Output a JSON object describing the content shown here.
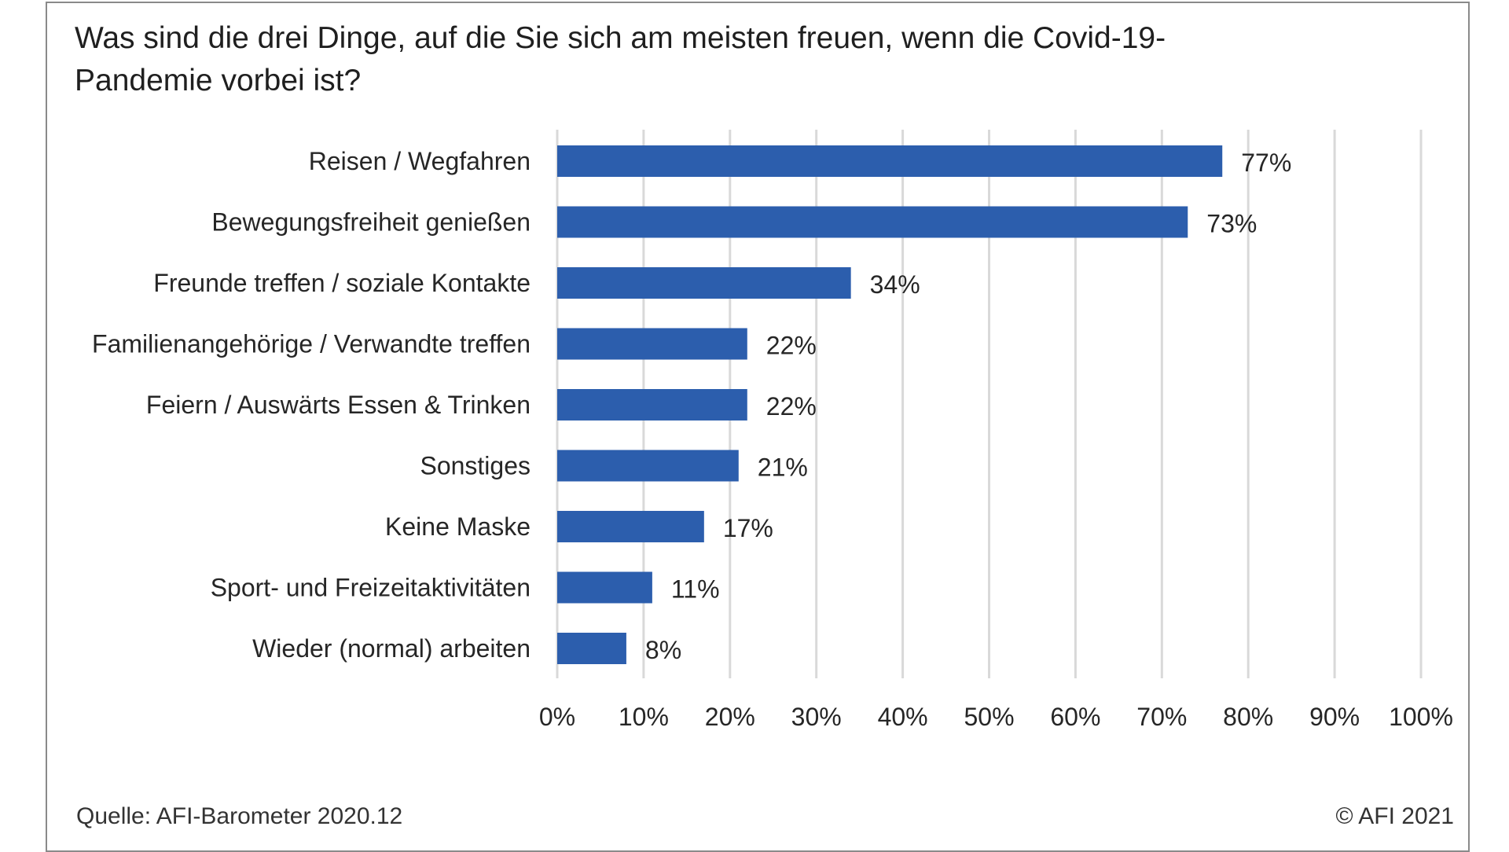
{
  "chart_data": {
    "type": "bar",
    "orientation": "horizontal",
    "title": "Was sind die drei Dinge, auf die Sie sich am meisten freuen, wenn die Covid-19-Pandemie vorbei ist?",
    "categories": [
      "Reisen / Wegfahren",
      "Bewegungsfreiheit genießen",
      "Freunde treffen / soziale Kontakte",
      "Familienangehörige / Verwandte treffen",
      "Feiern / Auswärts Essen & Trinken",
      "Sonstiges",
      "Keine Maske",
      "Sport- und Freizeitaktivitäten",
      "Wieder (normal) arbeiten"
    ],
    "values": [
      77,
      73,
      34,
      22,
      22,
      21,
      17,
      11,
      8
    ],
    "value_labels": [
      "77%",
      "73%",
      "34%",
      "22%",
      "22%",
      "21%",
      "17%",
      "11%",
      "8%"
    ],
    "xlim": [
      0,
      100
    ],
    "x_ticks": [
      "0%",
      "10%",
      "20%",
      "30%",
      "40%",
      "50%",
      "60%",
      "70%",
      "80%",
      "90%",
      "100%"
    ],
    "grid": "vertical",
    "bar_color": "#2c5ead",
    "grid_color": "#d9d9d9"
  },
  "footer": {
    "source": "Quelle: AFI-Barometer 2020.12",
    "copyright": "© AFI 2021"
  }
}
